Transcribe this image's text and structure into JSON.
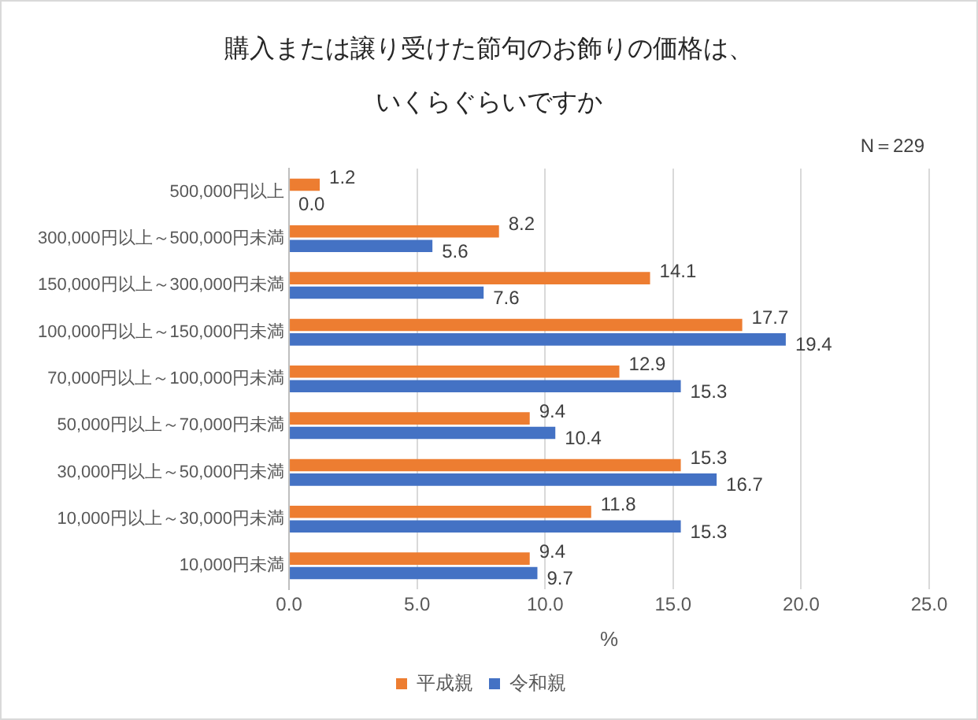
{
  "chart_data": {
    "type": "bar",
    "orientation": "horizontal",
    "title": "購入または譲り受けた節句のお飾りの価格は、いくらぐらいですか",
    "xlabel": "%",
    "annotations": [
      "N＝229"
    ],
    "categories": [
      "500,000円以上",
      "300,000円以上～500,000円未満",
      "150,000円以上～300,000円未満",
      "100,000円以上～150,000円未満",
      "70,000円以上～100,000円未満",
      "50,000円以上～70,000円未満",
      "30,000円以上～50,000円未満",
      "10,000円以上～30,000円未満",
      "10,000円未満"
    ],
    "series": [
      {
        "name": "平成親",
        "color": "#ed7d31",
        "values": [
          1.2,
          8.2,
          14.1,
          17.7,
          12.9,
          9.4,
          15.3,
          11.8,
          9.4
        ],
        "value_labels": [
          "1.2",
          "8.2",
          "14.1",
          "17.7",
          "12.9",
          "9.4",
          "15.3",
          "11.8",
          "9.4"
        ]
      },
      {
        "name": "令和親",
        "color": "#4472c4",
        "values": [
          0,
          5.6,
          7.6,
          19.4,
          15.3,
          10.4,
          16.7,
          15.3,
          9.7
        ],
        "value_labels": [
          "0.0",
          "5.6",
          "7.6",
          "19.4",
          "15.3",
          "10.4",
          "16.7",
          "15.3",
          "9.7"
        ]
      }
    ],
    "xlim": [
      0,
      25
    ],
    "xticks": [
      {
        "value": 0,
        "label": "0.0"
      },
      {
        "value": 5,
        "label": "5.0"
      },
      {
        "value": 10,
        "label": "10.0"
      },
      {
        "value": 15,
        "label": "15.0"
      },
      {
        "value": 20,
        "label": "20.0"
      },
      {
        "value": 25,
        "label": "25.0"
      }
    ],
    "grid": "x",
    "legend": "bottom"
  }
}
